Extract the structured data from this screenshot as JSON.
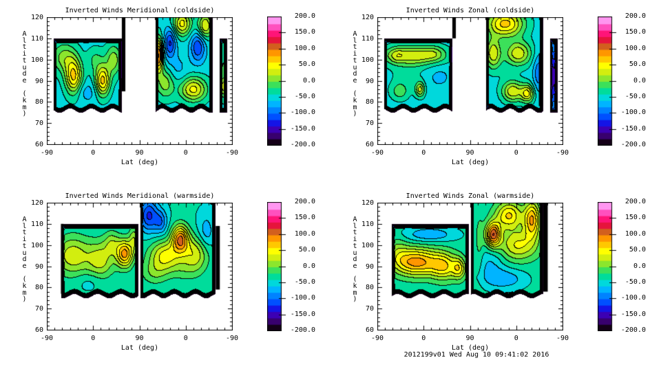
{
  "footer": {
    "timestamp": "2012199v01 Wed Aug 10 09:41:02 2016"
  },
  "colormap": {
    "min": -200,
    "max": 200,
    "step": 20,
    "colors": [
      "#140018",
      "#38006e",
      "#3c00b4",
      "#1414e6",
      "#0050ff",
      "#0082ff",
      "#00b4ff",
      "#00d8dc",
      "#00dc9b",
      "#3ce05a",
      "#8ce62d",
      "#d2ee0f",
      "#ffff00",
      "#ffc800",
      "#ff9600",
      "#d25f1e",
      "#e6143c",
      "#ff1478",
      "#ff50be",
      "#ff96f0"
    ]
  },
  "colorbar": {
    "labels": [
      "200.0",
      "150.0",
      "100.0",
      "50.0",
      "0.0",
      "-50.0",
      "-100.0",
      "-150.0",
      "-200.0"
    ]
  },
  "chart_data": [
    {
      "type": "contour",
      "title": "Inverted Winds Meridional (coldside)",
      "xlabel": "Lat (deg)",
      "ylabel": "Altitude (km)",
      "x_tick_labels": [
        "-90",
        "0",
        "90",
        "0",
        "-90"
      ],
      "y_tick_labels": [
        "120",
        "110",
        "100",
        "90",
        "80",
        "70",
        "60"
      ],
      "ylim": [
        60,
        120
      ],
      "levels": [
        -200,
        200,
        20
      ],
      "units": "m/s",
      "base": -48,
      "blocks": [
        {
          "u0": 0.035,
          "u1": 0.405,
          "a0": 76,
          "a1": 110,
          "wave": [
            1.0,
            55,
            1.0
          ],
          "bumps": [
            [
              0.145,
              92,
              0.032,
              6,
              112
            ],
            [
              0.3,
              90,
              0.028,
              5,
              115
            ],
            [
              0.09,
              101,
              0.045,
              5,
              55
            ],
            [
              0.36,
              100,
              0.03,
              5,
              60
            ],
            [
              0.21,
              85,
              0.05,
              3.5,
              -25
            ],
            [
              0.26,
              100,
              0.03,
              4,
              30
            ]
          ]
        },
        {
          "u0": 0.585,
          "u1": 0.895,
          "a0": 76,
          "a1": 120,
          "wave": [
            1.0,
            60,
            2.0
          ],
          "bumps": [
            [
              0.603,
              102,
              0.016,
              5.5,
              150
            ],
            [
              0.665,
              108,
              0.022,
              5,
              -75
            ],
            [
              0.815,
              106,
              0.028,
              5,
              -70
            ],
            [
              0.73,
              117,
              0.035,
              4,
              95
            ],
            [
              0.855,
              116,
              0.028,
              4,
              90
            ],
            [
              0.79,
              86,
              0.05,
              4,
              95
            ],
            [
              0.64,
              89,
              0.035,
              5,
              60
            ],
            [
              0.7,
              95,
              0.04,
              5,
              -20
            ]
          ]
        },
        {
          "u0": 0.932,
          "u1": 0.972,
          "a0": 75,
          "a1": 110,
          "bumps": [
            [
              0.952,
              95,
              0.015,
              9,
              30
            ],
            [
              0.953,
              87,
              0.01,
              3,
              60
            ]
          ]
        }
      ],
      "bars": [
        [
          0.405,
          0.424,
          85,
          120
        ]
      ]
    },
    {
      "type": "contour",
      "title": "Inverted Winds Zonal (coldside)",
      "xlabel": "Lat (deg)",
      "ylabel": "Altitude (km)",
      "x_tick_labels": [
        "-90",
        "0",
        "90",
        "0",
        "-90"
      ],
      "y_tick_labels": [
        "120",
        "110",
        "100",
        "90",
        "80",
        "70",
        "60"
      ],
      "ylim": [
        60,
        120
      ],
      "levels": [
        -200,
        200,
        20
      ],
      "units": "m/s",
      "base": -50,
      "blocks": [
        {
          "u0": 0.035,
          "u1": 0.405,
          "a0": 76,
          "a1": 110,
          "wave": [
            1.0,
            55,
            0.3
          ],
          "bumps": [
            [
              0.2,
              102,
              0.11,
              3.2,
              85
            ],
            [
              0.1,
              102,
              0.03,
              2.5,
              30
            ],
            [
              0.31,
              103,
              0.035,
              2.5,
              25
            ],
            [
              0.23,
              86,
              0.018,
              2.5,
              75
            ],
            [
              0.12,
              85,
              0.035,
              3,
              40
            ],
            [
              0.33,
              92,
              0.05,
              4,
              -15
            ],
            [
              0.16,
              93,
              0.07,
              5,
              15
            ]
          ]
        },
        {
          "u0": 0.585,
          "u1": 0.895,
          "a0": 76,
          "a1": 120,
          "wave": [
            1.0,
            60,
            2.6
          ],
          "bumps": [
            [
              0.69,
              117,
              0.07,
              4.5,
              118
            ],
            [
              0.625,
              103,
              0.03,
              5,
              85
            ],
            [
              0.76,
              103,
              0.05,
              4,
              85
            ],
            [
              0.73,
              85,
              0.04,
              3.5,
              85
            ],
            [
              0.81,
              84,
              0.025,
              3,
              90
            ],
            [
              0.87,
              94,
              0.02,
              6,
              -45
            ],
            [
              0.7,
              94,
              0.06,
              5,
              5
            ]
          ]
        },
        {
          "u0": 0.93,
          "u1": 0.972,
          "a0": 75,
          "a1": 110,
          "bumps": [
            [
              0.95,
              92,
              0.02,
              10,
              -100
            ]
          ]
        }
      ],
      "bars": [
        [
          0.405,
          0.424,
          110,
          120
        ],
        [
          0.872,
          0.894,
          78,
          103
        ]
      ]
    },
    {
      "type": "contour",
      "title": "Inverted Winds Meridional (warmside)",
      "xlabel": "Lat (deg)",
      "ylabel": "Altitude (km)",
      "x_tick_labels": [
        "-90",
        "0",
        "90",
        "0",
        "-90"
      ],
      "y_tick_labels": [
        "120",
        "110",
        "100",
        "90",
        "80",
        "70",
        "60"
      ],
      "ylim": [
        60,
        120
      ],
      "levels": [
        -200,
        200,
        20
      ],
      "units": "m/s",
      "base": -38,
      "blocks": [
        {
          "u0": 0.078,
          "u1": 0.492,
          "a0": 76,
          "a1": 110,
          "wave": [
            1.0,
            50,
            0.5
          ],
          "bumps": [
            [
              0.42,
              96,
              0.032,
              4.5,
              125
            ],
            [
              0.14,
              95,
              0.07,
              6.5,
              72
            ],
            [
              0.29,
              93,
              0.05,
              6,
              65
            ],
            [
              0.23,
              83,
              0.05,
              3,
              -15
            ],
            [
              0.35,
              101,
              0.03,
              4,
              45
            ],
            [
              0.47,
              103,
              0.018,
              4,
              50
            ]
          ]
        },
        {
          "u0": 0.503,
          "u1": 0.908,
          "a0": 76,
          "a1": 120,
          "wave": [
            1.0,
            55,
            1.5
          ],
          "bumps": [
            [
              0.55,
              114,
              0.035,
              5.5,
              -85
            ],
            [
              0.615,
              111,
              0.025,
              4,
              -55
            ],
            [
              0.72,
              103,
              0.032,
              4.5,
              130
            ],
            [
              0.64,
              95,
              0.06,
              5,
              85
            ],
            [
              0.8,
              96,
              0.05,
              5.5,
              70
            ],
            [
              0.86,
              106,
              0.03,
              6,
              -35
            ],
            [
              0.58,
              87,
              0.05,
              4,
              35
            ],
            [
              0.75,
              88,
              0.06,
              4,
              20
            ]
          ]
        }
      ],
      "bars": [
        [
          0.076,
          0.09,
          77,
          110
        ],
        [
          0.912,
          0.934,
          79,
          109
        ]
      ]
    },
    {
      "type": "contour",
      "title": "Inverted Winds Zonal (warmside)",
      "xlabel": "Lat (deg)",
      "ylabel": "Altitude (km)",
      "x_tick_labels": [
        "-90",
        "0",
        "90",
        "0",
        "-90"
      ],
      "y_tick_labels": [
        "120",
        "110",
        "100",
        "90",
        "80",
        "70",
        "60"
      ],
      "ylim": [
        60,
        120
      ],
      "levels": [
        -200,
        200,
        20
      ],
      "units": "m/s",
      "base": -32,
      "blocks": [
        {
          "u0": 0.078,
          "u1": 0.492,
          "a0": 76,
          "a1": 110,
          "wave": [
            1.0,
            50,
            2.5
          ],
          "bumps": [
            [
              0.21,
              92,
              0.085,
              4.5,
              122
            ],
            [
              0.36,
              90,
              0.05,
              4.5,
              80
            ],
            [
              0.44,
              89,
              0.025,
              3.5,
              70
            ],
            [
              0.28,
              105,
              0.1,
              2.5,
              -45
            ],
            [
              0.11,
              97,
              0.04,
              5,
              30
            ]
          ]
        },
        {
          "u0": 0.503,
          "u1": 0.893,
          "a0": 76,
          "a1": 120,
          "wave": [
            1.0,
            50,
            0.8
          ],
          "bumps": [
            [
              0.625,
              105,
              0.028,
              4,
              145
            ],
            [
              0.71,
              114,
              0.05,
              4.5,
              95
            ],
            [
              0.835,
              112,
              0.03,
              6,
              112
            ],
            [
              0.76,
              100,
              0.07,
              5,
              75
            ],
            [
              0.61,
              91,
              0.05,
              6,
              -30
            ],
            [
              0.69,
              84,
              0.08,
              3.5,
              -40
            ],
            [
              0.55,
              100,
              0.015,
              10,
              20
            ]
          ]
        }
      ],
      "bars": [
        [
          0.896,
          0.92,
          78,
          120
        ]
      ]
    }
  ]
}
